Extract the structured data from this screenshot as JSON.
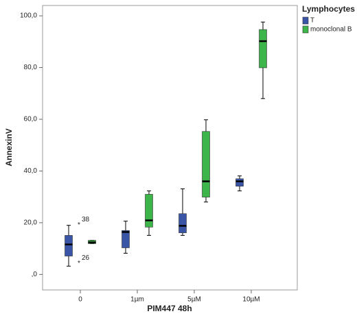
{
  "chart_data": {
    "type": "box",
    "x_label": "PIM447 48h",
    "y_label": "AnnexinV",
    "categories": [
      "0",
      "1µm",
      "5µM",
      "10µM"
    ],
    "ylim": [
      -6,
      104
    ],
    "yticks": [
      {
        "value": 0,
        "label": ",0"
      },
      {
        "value": 20,
        "label": "20,0"
      },
      {
        "value": 40,
        "label": "40,0"
      },
      {
        "value": 60,
        "label": "60,0"
      },
      {
        "value": 80,
        "label": "80,0"
      },
      {
        "value": 100,
        "label": "100,0"
      }
    ],
    "legend_title": "Lymphocytes",
    "legend_position": "top-right-outside",
    "series": [
      {
        "name": "T",
        "color": "#3a55a6",
        "values": [
          {
            "min": 3.2,
            "q1": 7.1,
            "median": 11.6,
            "q3": 15.1,
            "max": 19.0
          },
          {
            "min": 8.2,
            "q1": 10.3,
            "median": 16.4,
            "q3": 17.0,
            "max": 20.6
          },
          {
            "min": 15.1,
            "q1": 16.1,
            "median": 18.8,
            "q3": 23.5,
            "max": 33.1
          },
          {
            "min": 32.3,
            "q1": 34.1,
            "median": 36.0,
            "q3": 37.0,
            "max": 38.1
          }
        ],
        "outliers": [
          [],
          [],
          [],
          []
        ]
      },
      {
        "name": "monoclonal B",
        "color": "#3db54a",
        "values": [
          {
            "min": 11.9,
            "q1": 11.9,
            "median": 12.4,
            "q3": 13.2,
            "max": 13.2
          },
          {
            "min": 15.1,
            "q1": 18.3,
            "median": 20.9,
            "q3": 31.0,
            "max": 32.3
          },
          {
            "min": 28.0,
            "q1": 29.9,
            "median": 36.0,
            "q3": 55.3,
            "max": 59.8
          },
          {
            "min": 68.0,
            "q1": 79.9,
            "median": 90.2,
            "q3": 94.7,
            "max": 97.6
          }
        ],
        "outliers": [
          [
            {
              "value": 19.6,
              "label": "38"
            },
            {
              "value": 4.8,
              "label": "26"
            }
          ],
          [],
          [],
          []
        ]
      }
    ]
  }
}
